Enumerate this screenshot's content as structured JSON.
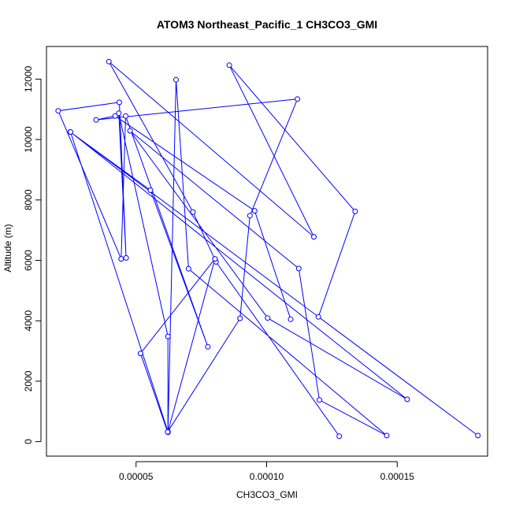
{
  "chart_data": {
    "type": "line",
    "title": "ATOM3 Northeast_Pacific_1 CH3CO3_GMI",
    "xlabel": "CH3CO3_GMI",
    "ylabel": "Altitude (m)",
    "x_ticks": [
      5e-05,
      0.0001,
      0.00015
    ],
    "x_tick_labels": [
      "0.00005",
      "0.00010",
      "0.00015"
    ],
    "y_ticks": [
      0,
      2000,
      4000,
      6000,
      8000,
      10000,
      12000
    ],
    "y_tick_labels": [
      "0",
      "2000",
      "4000",
      "6000",
      "8000",
      "10000",
      "12000"
    ],
    "xlim": [
      1.57e-05,
      0.0001846
    ],
    "ylim": [
      -480,
      13080
    ],
    "grid": false,
    "colors": {
      "series": "#0000ff",
      "axes": "#000000",
      "background": "#ffffff"
    },
    "series": [
      {
        "marker": "open-circle",
        "points": [
          {
            "x": 0.0001278,
            "y": 180
          },
          {
            "x": 8.06e-05,
            "y": 5950
          },
          {
            "x": 7.18e-05,
            "y": 7600
          },
          {
            "x": 3.96e-05,
            "y": 12580
          },
          {
            "x": 0.0001181,
            "y": 6780
          },
          {
            "x": 8.57e-05,
            "y": 12460
          },
          {
            "x": 0.0001339,
            "y": 7620
          },
          {
            "x": 0.0001198,
            "y": 4130
          },
          {
            "x": 0.0001809,
            "y": 200
          },
          {
            "x": 2.48e-05,
            "y": 10250
          },
          {
            "x": 5.55e-05,
            "y": 8320
          },
          {
            "x": 7.75e-05,
            "y": 3140
          },
          {
            "x": 4.6e-05,
            "y": 10780
          },
          {
            "x": 4.43e-05,
            "y": 6050
          },
          {
            "x": 2.02e-05,
            "y": 10950
          },
          {
            "x": 4.36e-05,
            "y": 11230
          },
          {
            "x": 4.62e-05,
            "y": 6080
          },
          {
            "x": 4.34e-05,
            "y": 10870
          },
          {
            "x": 6.22e-05,
            "y": 3480
          },
          {
            "x": 6.22e-05,
            "y": 310
          },
          {
            "x": 6.53e-05,
            "y": 11980
          },
          {
            "x": 7.01e-05,
            "y": 5720
          },
          {
            "x": 0.000146,
            "y": 200
          },
          {
            "x": 0.0001202,
            "y": 1380
          },
          {
            "x": 0.0001123,
            "y": 5730
          },
          {
            "x": 4.77e-05,
            "y": 10290
          },
          {
            "x": 0.0001004,
            "y": 4090
          },
          {
            "x": 0.0001538,
            "y": 1400
          },
          {
            "x": 2.49e-05,
            "y": 10250
          },
          {
            "x": 6.22e-05,
            "y": 330
          },
          {
            "x": 8.02e-05,
            "y": 6050
          },
          {
            "x": 5.17e-05,
            "y": 2920
          },
          {
            "x": 6.21e-05,
            "y": 320
          },
          {
            "x": 8.98e-05,
            "y": 4080
          },
          {
            "x": 9.36e-05,
            "y": 7480
          },
          {
            "x": 0.0001118,
            "y": 11340
          },
          {
            "x": 3.47e-05,
            "y": 10650
          },
          {
            "x": 4.2e-05,
            "y": 10780
          },
          {
            "x": 9.54e-05,
            "y": 7640
          },
          {
            "x": 0.0001092,
            "y": 4050
          }
        ]
      }
    ]
  }
}
